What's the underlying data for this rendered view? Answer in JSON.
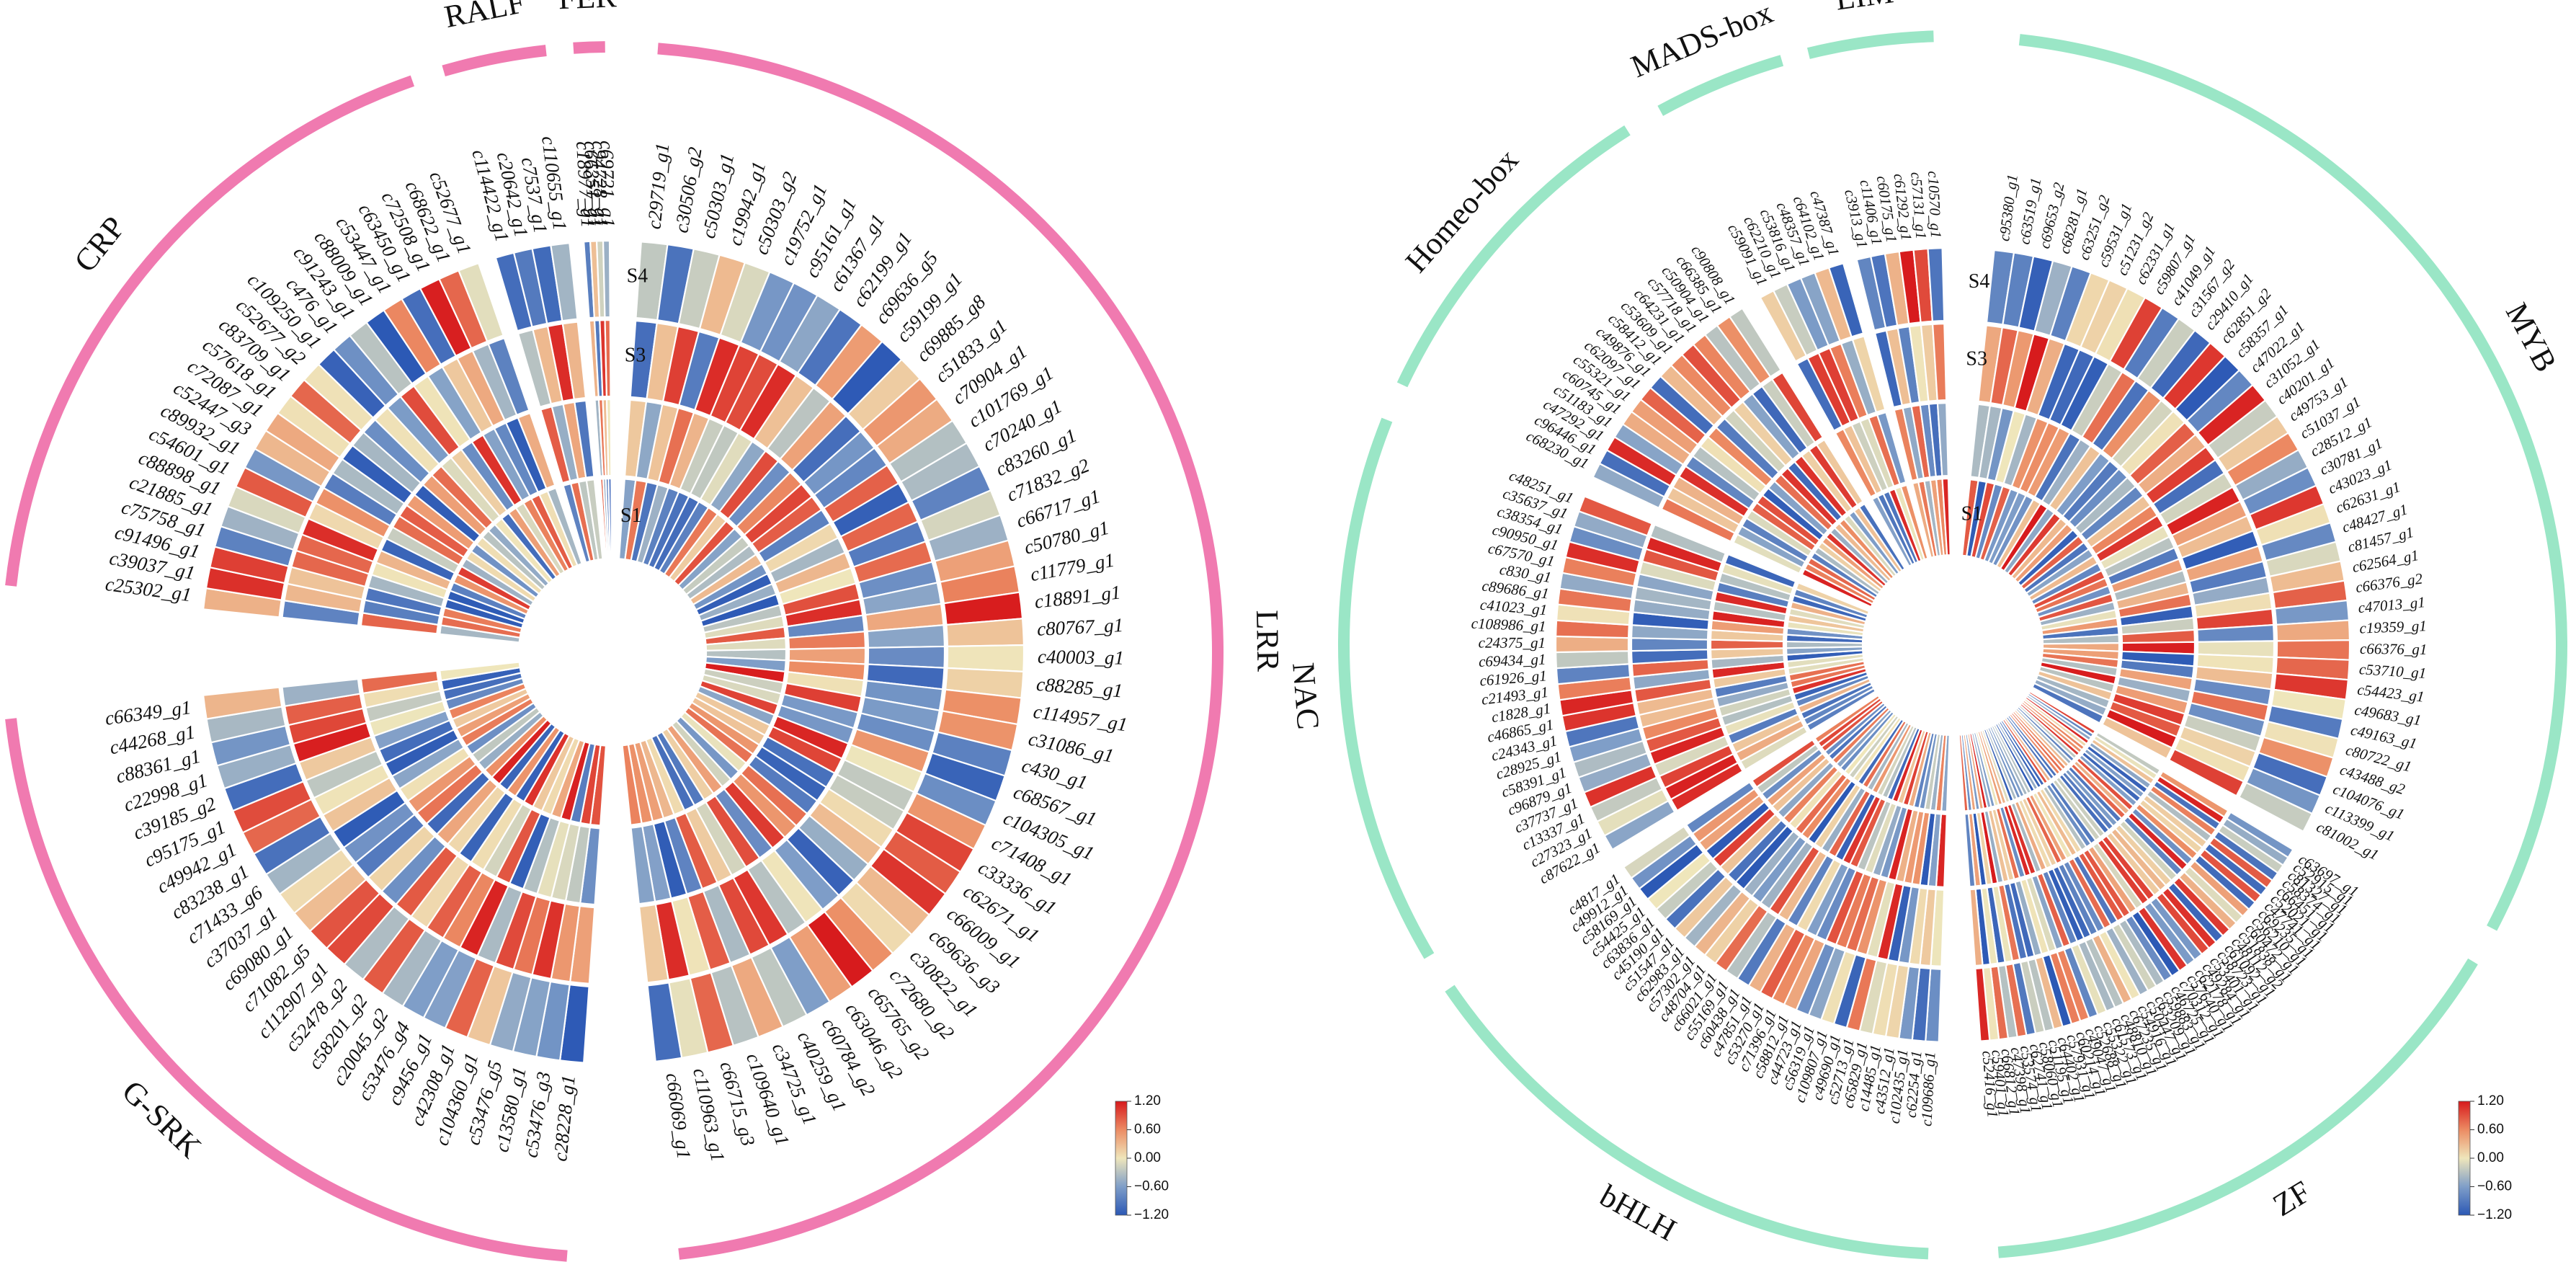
{
  "chart_data": [
    {
      "type": "heatmap",
      "layout": "circular",
      "rings": [
        "S1",
        "S2",
        "S3",
        "S4"
      ],
      "ring_labels_shown": [
        "S1",
        "S3",
        "S4"
      ],
      "color_scale": {
        "min": -1.2,
        "max": 1.2,
        "ticks": [
          "1.20",
          "0.60",
          "0.00",
          "−0.60",
          "−1.20"
        ]
      },
      "band_color": "#f07ab0",
      "groups": [
        {
          "name": "LRR",
          "genes": [
            "c29719_g1",
            "c30506_g2",
            "c50303_g1",
            "c19942_g1",
            "c50303_g2",
            "c19752_g1",
            "c95161_g1",
            "c61367_g1",
            "c62199_g1",
            "c69636_g5",
            "c59199_g1",
            "c69885_g8",
            "c51833_g1",
            "c70904_g1",
            "c101769_g1",
            "c70240_g1",
            "c83260_g1",
            "c71832_g2",
            "c66717_g1",
            "c50780_g1",
            "c11779_g1",
            "c18891_g1",
            "c80767_g1",
            "c40003_g1",
            "c88285_g1",
            "c114957_g1",
            "c31086_g1",
            "c430_g1",
            "c68567_g1",
            "c104305_g1",
            "c71408_g1",
            "c33336_g1",
            "c62671_g1",
            "c66009_g1",
            "c69636_g3",
            "c30822_g1",
            "c72680_g2",
            "c65765_g2",
            "c63046_g2",
            "c60784_g2",
            "c40259_g1",
            "c34725_g1",
            "c109640_g1",
            "c66715_g3",
            "c110963_g1",
            "c66069_g1"
          ]
        },
        {
          "name": "G-SRK",
          "genes": [
            "c28228_g1",
            "c53476_g3",
            "c13580_g1",
            "c53476_g5",
            "c104360_g1",
            "c42308_g1",
            "c9456_g1",
            "c53476_g4",
            "c20045_g2",
            "c58201_g2",
            "c52478_g2",
            "c112907_g1",
            "c71082_g5",
            "c69080_g1",
            "c37037_g1",
            "c71433_g6",
            "c83238_g1",
            "c49942_g1",
            "c95175_g1",
            "c39185_g2",
            "c22998_g1",
            "c88361_g1",
            "c44268_g1",
            "c66349_g1"
          ]
        },
        {
          "name": "CRP",
          "genes": [
            "c25302_g1",
            "c39037_g1",
            "c91496_g1",
            "c75758_g1",
            "c21885_g1",
            "c88898_g1",
            "c54601_g1",
            "c89932_g1",
            "c52447_g3",
            "c72087_g1",
            "c57618_g1",
            "c83709_g1",
            "c52677_g2",
            "c109250_g1",
            "c476_g1",
            "c91243_g1",
            "c88009_g1",
            "c53447_g1",
            "c63450_g1",
            "c72508_g1",
            "c68622_g1",
            "c52677_g1"
          ]
        },
        {
          "name": "RALF",
          "genes": [
            "c114422_g1",
            "c20642_g1",
            "c7537_g1",
            "c110655_g1"
          ]
        },
        {
          "name": "FER",
          "genes": [
            "c18977_g1",
            "c66351_g1",
            "c94728_g1",
            "c69721_g1"
          ]
        }
      ]
    },
    {
      "type": "heatmap",
      "layout": "circular",
      "rings": [
        "S1",
        "S2",
        "S3",
        "S4"
      ],
      "ring_labels_shown": [
        "S1",
        "S3",
        "S4"
      ],
      "color_scale": {
        "min": -1.2,
        "max": 1.2,
        "ticks": [
          "1.20",
          "0.60",
          "0.00",
          "−0.60",
          "−1.20"
        ]
      },
      "band_color": "#9ae6c6",
      "groups": [
        {
          "name": "MYB",
          "genes": [
            "c95380_g1",
            "c63519_g1",
            "c69653_g2",
            "c68281_g1",
            "c63251_g2",
            "c59531_g1",
            "c51231_g2",
            "c62331_g1",
            "c59807_g1",
            "c41049_g1",
            "c31567_g2",
            "c29410_g1",
            "c62851_g2",
            "c58357_g1",
            "c47022_g1",
            "c31052_g1",
            "c40201_g1",
            "c49753_g1",
            "c51037_g1",
            "c28512_g1",
            "c30781_g1",
            "c43023_g1",
            "c62631_g1",
            "c48427_g1",
            "c81457_g1",
            "c62564_g1",
            "c66376_g2",
            "c47013_g1",
            "c19359_g1",
            "c66376_g1",
            "c53710_g1",
            "c54423_g1",
            "c49683_g1",
            "c49163_g1",
            "c80722_g1",
            "c43488_g2",
            "c104076_g1",
            "c113399_g1",
            "c81002_g1"
          ]
        },
        {
          "name": "ZF",
          "genes": [
            "c63697_g1",
            "c52915_g1",
            "c81327_g1",
            "c58374_g1",
            "c66451_g1",
            "c52021_g1",
            "c47741_g1",
            "c69235_g1",
            "c56210_g1",
            "c60472_g1",
            "c51838_g1",
            "c48112_g2",
            "c61092_g1",
            "c58723_g1",
            "c53401_g1",
            "c49284_g1",
            "c62178_g1",
            "c57640_g1",
            "c70312_g1",
            "c46725_g1",
            "c59883_g1",
            "c63209_g1",
            "c50447_g1",
            "c54916_g1",
            "c67235_g1",
            "c48810_g1",
            "c61573_g1",
            "c55322_g1",
            "c52688_g1",
            "c49047_g1",
            "c60214_g1",
            "c57931_g1",
            "c64402_g1",
            "c51195_g1",
            "c58060_g1",
            "c62741_g1",
            "c53574_g1",
            "c47398_g1",
            "c66812_g1",
            "c59401_g1",
            "c52416_g1"
          ]
        },
        {
          "name": "bHLH",
          "genes": [
            "c109686_g1",
            "c62254_g1",
            "c102435_g1",
            "c43512_g1",
            "c14485_g1",
            "c65829_g1",
            "c52713_g1",
            "c49690_g1",
            "c109807_g1",
            "c56319_g1",
            "c44723_g1",
            "c58812_g1",
            "c71396_g1",
            "c53270_g1",
            "c47851_g1",
            "c60438_g1",
            "c55169_g1",
            "c66021_g1",
            "c48704_g1",
            "c57302_g1",
            "c62983_g1",
            "c51547_g1",
            "c45190_g1",
            "c63836_g1",
            "c54425_g1",
            "c58169_g1",
            "c49912_g1",
            "c4817_g1"
          ]
        },
        {
          "name": "NAC",
          "genes": [
            "c87622_g1",
            "c27323_g1",
            "c13337_g1",
            "c37737_g1",
            "c96879_g1",
            "c58391_g1",
            "c28925_g1",
            "c24343_g1",
            "c46865_g1",
            "c1828_g1",
            "c21493_g1",
            "c61926_g1",
            "c69434_g1",
            "c24375_g1",
            "c108986_g1",
            "c41023_g1",
            "c89686_g1",
            "c830_g1",
            "c67570_g1",
            "c90950_g1",
            "c38354_g1",
            "c35637_g1",
            "c48251_g1"
          ]
        },
        {
          "name": "Homeo-box",
          "genes": [
            "c68230_g1",
            "c96446_g1",
            "c47292_g1",
            "c51183_g1",
            "c60745_g1",
            "c55321_g1",
            "c62097_g1",
            "c49876_g1",
            "c58412_g1",
            "c53609_g1",
            "c64231_g1",
            "c57718_g1",
            "c50904_g1",
            "c66385_g1",
            "c90808_g1"
          ]
        },
        {
          "name": "MADS-box",
          "genes": [
            "c59091_g1",
            "c62210_g1",
            "c53816_g1",
            "c48357_g1",
            "c64102_g1",
            "c47387_g1"
          ]
        },
        {
          "name": "LIM",
          "genes": [
            "c3913_g1",
            "c11406_g1",
            "c60175_g1",
            "c61292_g1",
            "c57131_g1",
            "c10570_g1"
          ]
        }
      ]
    }
  ]
}
